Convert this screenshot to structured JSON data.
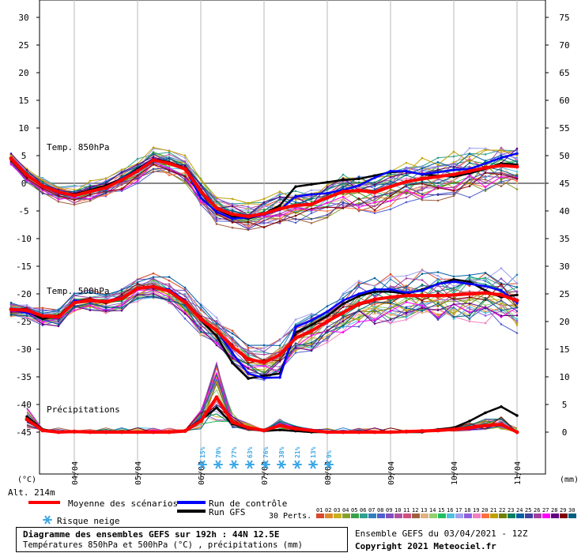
{
  "chart_data": {
    "type": "line",
    "left_axis": {
      "unit": "(°C)",
      "ticks": [
        30,
        25,
        20,
        15,
        10,
        5,
        0,
        -5,
        -10,
        -15,
        -20,
        -25,
        -30,
        -35,
        -40,
        -45
      ],
      "range": [
        -45,
        30
      ]
    },
    "right_axis": {
      "unit": "(mm)",
      "ticks": [
        75,
        70,
        65,
        60,
        55,
        50,
        45,
        40,
        35,
        30,
        25,
        20,
        15,
        10,
        5,
        0
      ],
      "range": [
        0,
        75
      ]
    },
    "x_tick_labels": [
      "04/04",
      "05/04",
      "06/04",
      "07/04",
      "08/04",
      "09/04",
      "10/04",
      "11/04"
    ],
    "altitude": "Alt. 214m",
    "panels": [
      {
        "label": "Temp. 850hPa",
        "days": [
          0,
          0.25,
          0.5,
          0.75,
          1,
          1.25,
          1.5,
          1.75,
          2,
          2.25,
          2.5,
          2.75,
          3,
          3.25,
          3.5,
          3.75,
          4,
          4.25,
          4.5,
          4.75,
          5,
          5.25,
          5.5,
          5.75,
          6,
          6.25,
          6.5,
          6.75,
          7,
          7.25,
          7.5,
          7.75,
          8
        ],
        "mean": [
          4.5,
          1.5,
          -0.5,
          -1.6,
          -2.2,
          -1.5,
          -0.8,
          0.6,
          2.2,
          4.2,
          3.6,
          2.6,
          -1.5,
          -4.5,
          -5.6,
          -6,
          -5.5,
          -4.6,
          -4,
          -3.8,
          -2.6,
          -1.5,
          -1.3,
          -1.6,
          -0.6,
          0.3,
          0.8,
          1.2,
          1.6,
          2.2,
          2.8,
          3.2,
          3.0
        ],
        "gfs": [
          4.5,
          1.3,
          -0.4,
          -1.7,
          -2,
          -1.2,
          -0.4,
          0.8,
          2.6,
          4.4,
          3.8,
          2.8,
          -1.2,
          -4.7,
          -6,
          -6.4,
          -5.5,
          -4,
          -0.6,
          -0.2,
          0.2,
          0.6,
          0.8,
          1.4,
          2,
          2.2,
          1.6,
          1.4,
          1.2,
          1.8,
          2.6,
          3.6,
          3.4
        ],
        "control": [
          4.6,
          1.5,
          -0.5,
          -1.8,
          -2.3,
          -1.6,
          -0.8,
          0.8,
          2.4,
          4.4,
          3.6,
          2.6,
          -2.6,
          -5.2,
          -6.4,
          -6.2,
          -5.7,
          -4.8,
          -2.4,
          -2,
          -1.8,
          -1.2,
          -0.4,
          1,
          2.2,
          2.2,
          1.6,
          2,
          2.4,
          2.6,
          3.6,
          4.6,
          5.4
        ]
      },
      {
        "label": "Temp. 500hPa",
        "days": [
          0,
          0.25,
          0.5,
          0.75,
          1,
          1.25,
          1.5,
          1.75,
          2,
          2.25,
          2.5,
          2.75,
          3,
          3.25,
          3.5,
          3.75,
          4,
          4.25,
          4.5,
          4.75,
          5,
          5.25,
          5.5,
          5.75,
          6,
          6.25,
          6.5,
          6.75,
          7,
          7.25,
          7.5,
          7.75,
          8
        ],
        "mean": [
          -22.8,
          -23,
          -24,
          -24.2,
          -21.6,
          -21.2,
          -21.4,
          -20.8,
          -19,
          -18.7,
          -19.5,
          -21.5,
          -24.6,
          -26.6,
          -29.6,
          -31.8,
          -32.4,
          -31,
          -28,
          -26.7,
          -25,
          -23.4,
          -21.8,
          -21,
          -20.6,
          -20.3,
          -20.3,
          -20.3,
          -20.2,
          -20,
          -19.8,
          -20.2,
          -21.2
        ],
        "gfs": [
          -22.8,
          -23.2,
          -24.5,
          -24,
          -21.4,
          -21.2,
          -21.6,
          -20.6,
          -19,
          -18.8,
          -19.3,
          -21.2,
          -24.8,
          -27.6,
          -32.5,
          -35.3,
          -34.8,
          -34.4,
          -27,
          -25.6,
          -24,
          -21.8,
          -20.4,
          -19.6,
          -19.6,
          -20,
          -19.2,
          -18.2,
          -17.4,
          -17.8,
          -19.4,
          -20.6,
          -20.2
        ],
        "control": [
          -22.8,
          -23.4,
          -24,
          -24.4,
          -21.2,
          -21.4,
          -21.3,
          -20.6,
          -19,
          -18.9,
          -19.2,
          -21.2,
          -24.8,
          -26.6,
          -30.7,
          -34.4,
          -35.2,
          -35.1,
          -26,
          -24.8,
          -23.2,
          -21.2,
          -20,
          -19.2,
          -19.2,
          -19.8,
          -19.4,
          -18.2,
          -17.8,
          -18.2,
          -18.6,
          -19.4,
          -21.6
        ]
      },
      {
        "label": "Précipitations",
        "days": [
          0.25,
          0.5,
          0.75,
          1,
          1.25,
          1.5,
          1.75,
          2,
          2.25,
          2.5,
          2.75,
          3,
          3.25,
          3.5,
          3.75,
          4,
          4.25,
          4.5,
          4.75,
          5,
          5.25,
          5.5,
          5.75,
          6,
          6.25,
          6.5,
          6.75,
          7,
          7.25,
          7.5,
          7.75,
          8
        ],
        "mean_mm": [
          2.3,
          0.3,
          0,
          0.1,
          0,
          0,
          0,
          0,
          0,
          0,
          0.2,
          2,
          6.3,
          1.8,
          0.8,
          0.3,
          1.2,
          0.6,
          0.3,
          0,
          0,
          0,
          0,
          0,
          0.1,
          0.2,
          0.3,
          0.5,
          0.8,
          1.2,
          1.4,
          0
        ],
        "gfs_mm": [
          2.8,
          0.5,
          0,
          0,
          0,
          0,
          0,
          0,
          0,
          0,
          0.3,
          2.2,
          4.4,
          1.5,
          0.6,
          0.2,
          0.4,
          0.2,
          0,
          0,
          0,
          0,
          0,
          0,
          0,
          0,
          0.5,
          0.8,
          2,
          3.5,
          4.6,
          3
        ]
      }
    ],
    "snow_risk": [
      {
        "day": 3.0,
        "pct": "15%"
      },
      {
        "day": 3.25,
        "pct": "70%"
      },
      {
        "day": 3.5,
        "pct": "77%"
      },
      {
        "day": 3.75,
        "pct": "63%"
      },
      {
        "day": 4.0,
        "pct": "76%"
      },
      {
        "day": 4.25,
        "pct": "38%"
      },
      {
        "day": 4.5,
        "pct": "21%"
      },
      {
        "day": 4.75,
        "pct": "13%"
      },
      {
        "day": 5.0,
        "pct": "9%"
      }
    ],
    "legend": {
      "mean": {
        "label": "Moyenne des scénarios",
        "color": "#ff0000"
      },
      "control": {
        "label": "Run de contrôle",
        "color": "#0000ff"
      },
      "gfs": {
        "label": "Run GFS",
        "color": "#000000"
      },
      "snow": {
        "label": "Risque neige"
      },
      "perts_label": "30 Perts.",
      "perts": [
        {
          "n": "01",
          "color": "#d84a2a"
        },
        {
          "n": "02",
          "color": "#e08a2a"
        },
        {
          "n": "03",
          "color": "#c8b020"
        },
        {
          "n": "04",
          "color": "#86a030"
        },
        {
          "n": "05",
          "color": "#3aa04a"
        },
        {
          "n": "06",
          "color": "#30a090"
        },
        {
          "n": "07",
          "color": "#3080c0"
        },
        {
          "n": "08",
          "color": "#5060d0"
        },
        {
          "n": "09",
          "color": "#8050c0"
        },
        {
          "n": "10",
          "color": "#b050a0"
        },
        {
          "n": "11",
          "color": "#d05080"
        },
        {
          "n": "12",
          "color": "#a06040"
        },
        {
          "n": "13",
          "color": "#e0b080"
        },
        {
          "n": "14",
          "color": "#90d070"
        },
        {
          "n": "15",
          "color": "#20c060"
        },
        {
          "n": "16",
          "color": "#50c0e0"
        },
        {
          "n": "17",
          "color": "#a0a0f0"
        },
        {
          "n": "18",
          "color": "#9060e0"
        },
        {
          "n": "19",
          "color": "#f080c0"
        },
        {
          "n": "20",
          "color": "#ff7040"
        },
        {
          "n": "21",
          "color": "#c0a000"
        },
        {
          "n": "22",
          "color": "#708000"
        },
        {
          "n": "23",
          "color": "#008060"
        },
        {
          "n": "24",
          "color": "#0060a0"
        },
        {
          "n": "25",
          "color": "#4040a0"
        },
        {
          "n": "26",
          "color": "#a040a0"
        },
        {
          "n": "27",
          "color": "#ff00ff"
        },
        {
          "n": "28",
          "color": "#600080"
        },
        {
          "n": "29",
          "color": "#800000"
        },
        {
          "n": "30",
          "color": "#006080"
        }
      ]
    }
  },
  "footer": {
    "title_line": "Diagramme des ensembles GEFS sur 192h : 44N 12.5E",
    "sub_line": "Températures 850hPa et 500hPa (°C) , précipitations (mm)",
    "run_line": "Ensemble GEFS du 03/04/2021 - 12Z",
    "copyright_line": "Copyright 2021 Meteociel.fr"
  }
}
